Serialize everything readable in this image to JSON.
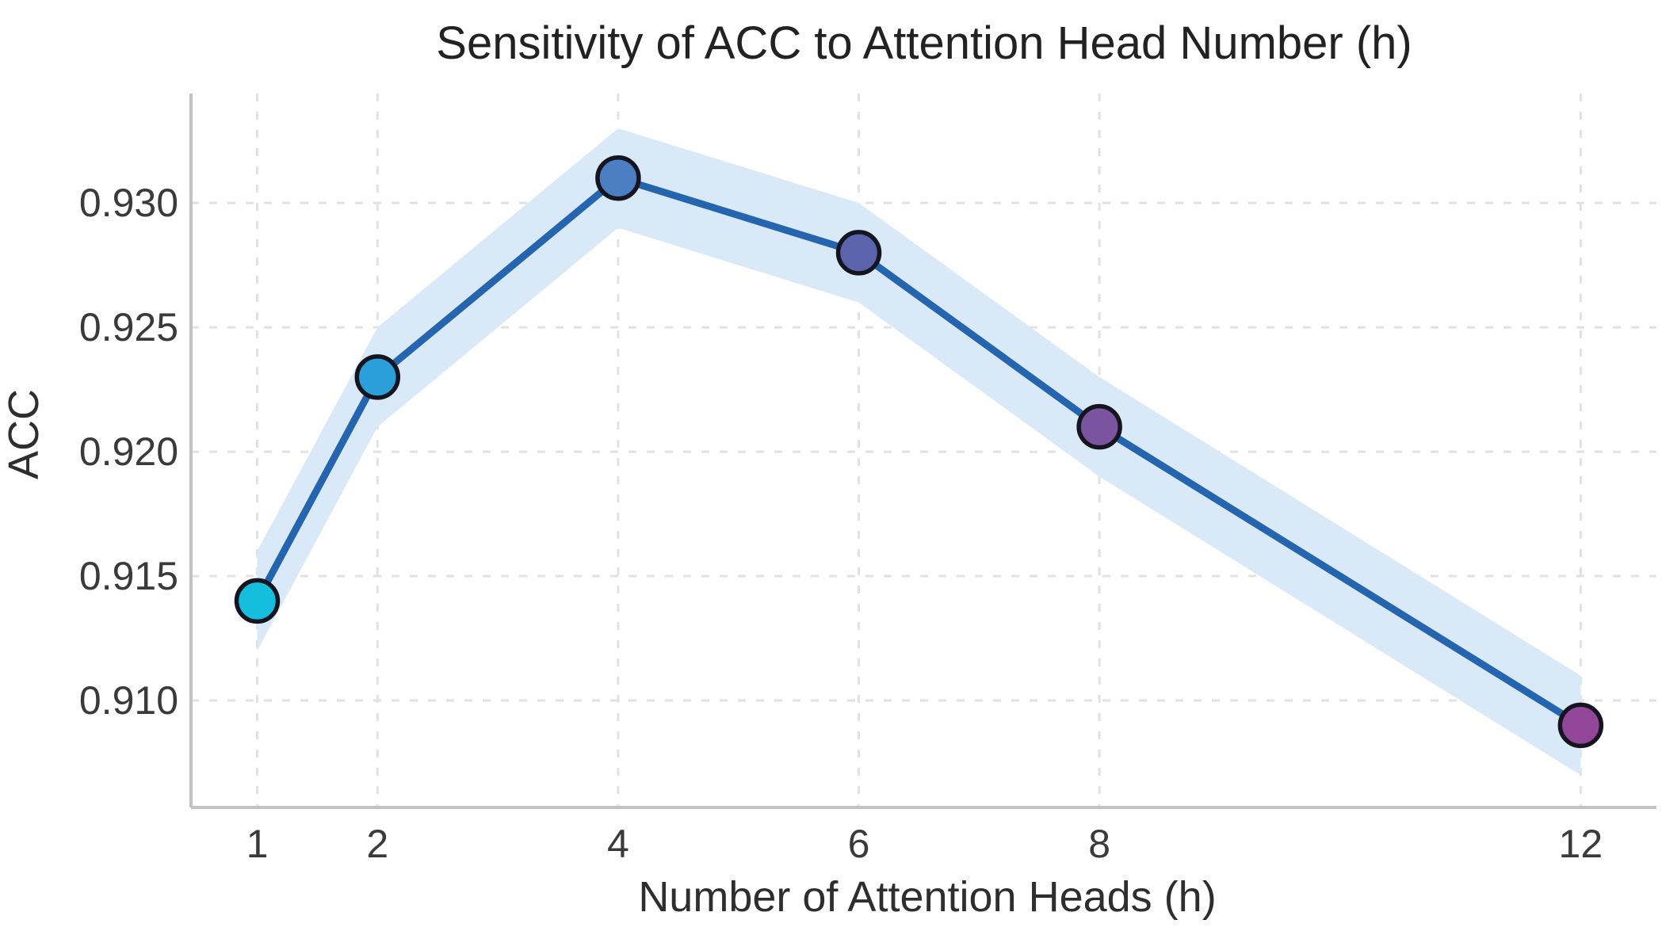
{
  "chart_data": {
    "type": "line",
    "title": "Sensitivity of ACC to Attention Head Number (h)",
    "xlabel": "Number of Attention Heads (h)",
    "ylabel": "ACC",
    "x": [
      1,
      2,
      4,
      6,
      8,
      12
    ],
    "series": [
      {
        "name": "ACC",
        "values": [
          0.914,
          0.923,
          0.931,
          0.928,
          0.921,
          0.909
        ]
      }
    ],
    "band": {
      "upper": [
        0.916,
        0.925,
        0.933,
        0.93,
        0.923,
        0.911
      ],
      "lower": [
        0.912,
        0.921,
        0.929,
        0.926,
        0.919,
        0.907
      ]
    },
    "xticks": [
      {
        "value": 1,
        "label": "1"
      },
      {
        "value": 2,
        "label": "2"
      },
      {
        "value": 4,
        "label": "4"
      },
      {
        "value": 6,
        "label": "6"
      },
      {
        "value": 8,
        "label": "8"
      },
      {
        "value": 12,
        "label": "12"
      }
    ],
    "yticks": [
      {
        "value": 0.91,
        "label": "0.910"
      },
      {
        "value": 0.915,
        "label": "0.915"
      },
      {
        "value": 0.92,
        "label": "0.920"
      },
      {
        "value": 0.925,
        "label": "0.925"
      },
      {
        "value": 0.93,
        "label": "0.930"
      }
    ],
    "xlim": [
      0.45,
      12.63
    ],
    "ylim": [
      0.9057,
      0.9344
    ],
    "grid": "dashed-both-axes",
    "legend_position": "none",
    "colors": {
      "line": "#2565af",
      "band": "#d9e9f7",
      "marker_edge": "#15151f",
      "markers": [
        "#16bede",
        "#2b9fd9",
        "#4b7ec3",
        "#5c63ad",
        "#7a549f",
        "#93479b"
      ],
      "gridline": "#e2e2e2",
      "spine": "#c3c3c3",
      "title_text": "#222222",
      "tick_text": "#3a3a3a"
    }
  }
}
